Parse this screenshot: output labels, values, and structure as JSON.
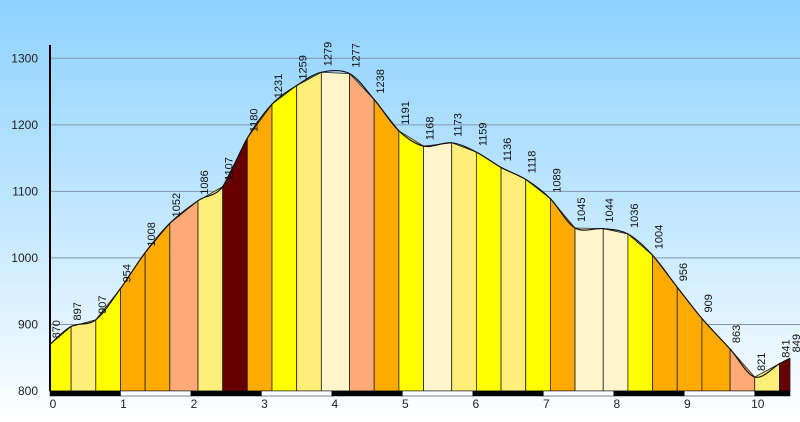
{
  "chart_data": {
    "type": "area",
    "title": "",
    "xlabel": "",
    "ylabel": "",
    "xlim": [
      0,
      10.5
    ],
    "ylim": [
      800,
      1320
    ],
    "yticks": [
      800,
      900,
      1000,
      1100,
      1200,
      1300
    ],
    "xticks": [
      0,
      1,
      2,
      3,
      4,
      5,
      6,
      7,
      8,
      9,
      10
    ],
    "grid": true,
    "points": [
      {
        "x": 0.0,
        "y": 870,
        "label": "870",
        "color": "#ffff00"
      },
      {
        "x": 0.3,
        "y": 897,
        "label": "897",
        "color": "#ffee77"
      },
      {
        "x": 0.65,
        "y": 907,
        "label": "907",
        "color": "#ffff00"
      },
      {
        "x": 1.0,
        "y": 954,
        "label": "954",
        "color": "#ffaa00"
      },
      {
        "x": 1.35,
        "y": 1008,
        "label": "1008",
        "color": "#ffaa00"
      },
      {
        "x": 1.7,
        "y": 1052,
        "label": "1052",
        "color": "#ffaa77"
      },
      {
        "x": 2.1,
        "y": 1086,
        "label": "1086",
        "color": "#ffee77"
      },
      {
        "x": 2.45,
        "y": 1107,
        "label": "1107",
        "color": "#660000"
      },
      {
        "x": 2.8,
        "y": 1180,
        "label": "1180",
        "color": "#ffaa00"
      },
      {
        "x": 3.15,
        "y": 1231,
        "label": "1231",
        "color": "#ffff00"
      },
      {
        "x": 3.5,
        "y": 1259,
        "label": "1259",
        "color": "#ffee77"
      },
      {
        "x": 3.85,
        "y": 1279,
        "label": "1279",
        "color": "#fff5cc"
      },
      {
        "x": 4.25,
        "y": 1277,
        "label": "1277",
        "color": "#ffaa77"
      },
      {
        "x": 4.6,
        "y": 1238,
        "label": "1238",
        "color": "#ffaa00"
      },
      {
        "x": 4.95,
        "y": 1191,
        "label": "1191",
        "color": "#ffff00"
      },
      {
        "x": 5.3,
        "y": 1168,
        "label": "1168",
        "color": "#fff5cc"
      },
      {
        "x": 5.7,
        "y": 1173,
        "label": "1173",
        "color": "#ffee77"
      },
      {
        "x": 6.05,
        "y": 1159,
        "label": "1159",
        "color": "#ffff00"
      },
      {
        "x": 6.4,
        "y": 1136,
        "label": "1136",
        "color": "#ffee77"
      },
      {
        "x": 6.75,
        "y": 1118,
        "label": "1118",
        "color": "#ffff00"
      },
      {
        "x": 7.1,
        "y": 1089,
        "label": "1089",
        "color": "#ffaa00"
      },
      {
        "x": 7.45,
        "y": 1045,
        "label": "1045",
        "color": "#fff5cc"
      },
      {
        "x": 7.85,
        "y": 1044,
        "label": "1044",
        "color": "#fff5cc"
      },
      {
        "x": 8.2,
        "y": 1036,
        "label": "1036",
        "color": "#ffff00"
      },
      {
        "x": 8.55,
        "y": 1004,
        "label": "1004",
        "color": "#ffaa00"
      },
      {
        "x": 8.9,
        "y": 956,
        "label": "956",
        "color": "#ffaa00"
      },
      {
        "x": 9.25,
        "y": 909,
        "label": "909",
        "color": "#ffaa00"
      },
      {
        "x": 9.65,
        "y": 863,
        "label": "863",
        "color": "#ffaa77"
      },
      {
        "x": 10.0,
        "y": 821,
        "label": "821",
        "color": "#ffee77"
      },
      {
        "x": 10.35,
        "y": 841,
        "label": "841",
        "color": "#660000"
      },
      {
        "x": 10.5,
        "y": 849,
        "label": "849",
        "color": "#660000"
      }
    ],
    "xaxis_bar": [
      {
        "from": 0.0,
        "to": 1.0,
        "color": "#000000"
      },
      {
        "from": 1.0,
        "to": 2.0,
        "color": "#ffffff"
      },
      {
        "from": 2.0,
        "to": 3.0,
        "color": "#000000"
      },
      {
        "from": 3.0,
        "to": 4.0,
        "color": "#ffffff"
      },
      {
        "from": 4.0,
        "to": 5.0,
        "color": "#000000"
      },
      {
        "from": 5.0,
        "to": 6.0,
        "color": "#ffffff"
      },
      {
        "from": 6.0,
        "to": 7.0,
        "color": "#000000"
      },
      {
        "from": 7.0,
        "to": 8.0,
        "color": "#ffffff"
      },
      {
        "from": 8.0,
        "to": 9.0,
        "color": "#000000"
      },
      {
        "from": 9.0,
        "to": 10.0,
        "color": "#ffffff"
      },
      {
        "from": 10.0,
        "to": 10.5,
        "color": "#000000"
      }
    ]
  }
}
